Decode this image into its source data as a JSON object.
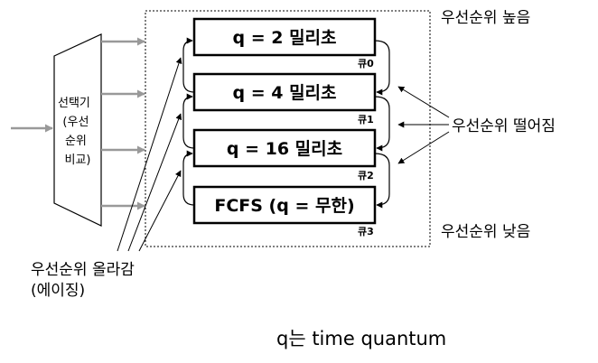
{
  "selector": {
    "lines": [
      "선택기",
      "(우선",
      "순위",
      "비교)"
    ]
  },
  "queues": [
    {
      "box_text": "q = 2 밀리초",
      "queue_label": "큐0"
    },
    {
      "box_text": "q = 4 밀리초",
      "queue_label": "큐1"
    },
    {
      "box_text": "q = 16 밀리초",
      "queue_label": "큐2"
    },
    {
      "box_text": "FCFS (q = 무한)",
      "queue_label": "큐3"
    }
  ],
  "labels": {
    "priority_high": "우선순위 높음",
    "priority_drop": "우선순위 떨어짐",
    "priority_low": "우선순위 낮음",
    "aging_line1": "우선순위 올라감",
    "aging_line2": "(에이징)"
  },
  "caption": "q는 time quantum"
}
